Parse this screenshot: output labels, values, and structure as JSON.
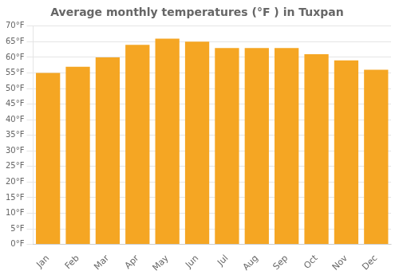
{
  "chart_data": {
    "type": "bar",
    "title": "Average monthly temperatures (°F ) in Tuxpan",
    "categories": [
      "Jan",
      "Feb",
      "Mar",
      "Apr",
      "May",
      "Jun",
      "Jul",
      "Aug",
      "Sep",
      "Oct",
      "Nov",
      "Dec"
    ],
    "values": [
      55,
      57,
      60,
      64,
      66,
      65,
      63,
      63,
      63,
      61,
      59,
      56
    ],
    "color": "#F5A623",
    "ylim": [
      0,
      70
    ],
    "yticks": [
      {
        "value": 0,
        "label": "0°F"
      },
      {
        "value": 5,
        "label": "5°F"
      },
      {
        "value": 10,
        "label": "10°F"
      },
      {
        "value": 15,
        "label": "15°F"
      },
      {
        "value": 20,
        "label": "20°F"
      },
      {
        "value": 25,
        "label": "25°F"
      },
      {
        "value": 30,
        "label": "30°F"
      },
      {
        "value": 35,
        "label": "35°F"
      },
      {
        "value": 40,
        "label": "40°F"
      },
      {
        "value": 45,
        "label": "45°F"
      },
      {
        "value": 50,
        "label": "50°F"
      },
      {
        "value": 55,
        "label": "55°F"
      },
      {
        "value": 60,
        "label": "60°F"
      },
      {
        "value": 65,
        "label": "65°F"
      },
      {
        "value": 70,
        "label": "70°F"
      }
    ],
    "grid": true
  }
}
